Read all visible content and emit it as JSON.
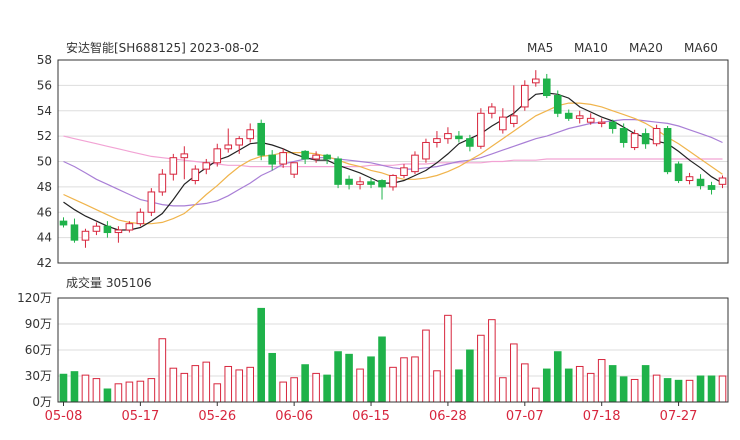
{
  "colors": {
    "up": "#d7263d",
    "down": "#1fb24a",
    "ma5": "#222222",
    "ma10": "#f0b44c",
    "ma20": "#a97fd6",
    "ma60": "#f2a3d4",
    "grid": "#dddddd",
    "axis": "#333333"
  },
  "chart_data": {
    "type": "candlestick",
    "title": "安达智能[SH688125] 2023-08-02",
    "legend": [
      "MA5",
      "MA10",
      "MA20",
      "MA60"
    ],
    "price_axis": {
      "ylim": [
        42,
        58
      ],
      "ticks": [
        "42",
        "44",
        "46",
        "48",
        "50",
        "52",
        "54",
        "56",
        "58"
      ]
    },
    "volume_axis": {
      "title": "成交量 305106",
      "ylim": [
        0,
        120
      ],
      "ticks": [
        "0万",
        "30万",
        "60万",
        "90万",
        "120万"
      ]
    },
    "x_labels": [
      "05-08",
      "05-17",
      "05-26",
      "06-06",
      "06-15",
      "06-28",
      "07-07",
      "07-18",
      "07-27"
    ],
    "x_label_index": [
      0,
      7,
      14,
      21,
      28,
      35,
      42,
      49,
      56
    ],
    "dates": [
      "05-08",
      "05-09",
      "05-10",
      "05-11",
      "05-12",
      "05-15",
      "05-16",
      "05-17",
      "05-18",
      "05-19",
      "05-22",
      "05-23",
      "05-24",
      "05-25",
      "05-26",
      "05-29",
      "05-30",
      "05-31",
      "06-01",
      "06-02",
      "06-05",
      "06-06",
      "06-07",
      "06-08",
      "06-09",
      "06-12",
      "06-13",
      "06-14",
      "06-15",
      "06-16",
      "06-19",
      "06-20",
      "06-21",
      "06-26",
      "06-27",
      "06-28",
      "06-29",
      "06-30",
      "07-03",
      "07-04",
      "07-05",
      "07-06",
      "07-07",
      "07-10",
      "07-11",
      "07-12",
      "07-13",
      "07-14",
      "07-17",
      "07-18",
      "07-19",
      "07-20",
      "07-21",
      "07-24",
      "07-25",
      "07-26",
      "07-27",
      "07-28",
      "07-31",
      "08-01",
      "08-02"
    ],
    "open": [
      45.3,
      45.0,
      43.8,
      44.5,
      44.9,
      44.4,
      44.6,
      45.1,
      46.0,
      47.6,
      49.0,
      50.3,
      48.5,
      49.4,
      49.9,
      51.0,
      51.3,
      51.8,
      53.0,
      50.5,
      49.8,
      49.0,
      50.8,
      50.2,
      50.5,
      50.2,
      48.6,
      48.2,
      48.4,
      48.5,
      48.0,
      48.9,
      49.2,
      50.2,
      51.5,
      51.8,
      52.0,
      51.8,
      51.2,
      53.8,
      52.5,
      53.0,
      54.3,
      56.2,
      56.5,
      55.2,
      53.8,
      53.4,
      53.1,
      53.0,
      53.1,
      52.6,
      51.1,
      52.2,
      51.4,
      52.6,
      49.8,
      48.5,
      48.6,
      48.1,
      48.2
    ],
    "close": [
      45.0,
      43.8,
      44.5,
      44.9,
      44.4,
      44.6,
      45.1,
      46.0,
      47.6,
      49.0,
      50.3,
      50.6,
      49.4,
      49.9,
      51.0,
      51.3,
      51.8,
      52.5,
      50.5,
      49.8,
      50.7,
      49.9,
      50.2,
      50.5,
      50.2,
      48.2,
      48.2,
      48.4,
      48.2,
      48.0,
      48.9,
      49.5,
      50.5,
      51.5,
      51.8,
      52.2,
      51.8,
      51.2,
      53.8,
      54.3,
      53.5,
      53.6,
      56.0,
      56.5,
      55.2,
      53.8,
      53.4,
      53.6,
      53.4,
      53.1,
      52.6,
      51.5,
      52.2,
      51.4,
      52.6,
      49.2,
      48.5,
      48.8,
      48.1,
      47.8,
      48.7
    ],
    "high": [
      45.6,
      45.5,
      44.7,
      45.2,
      45.3,
      44.9,
      45.3,
      46.3,
      47.9,
      49.4,
      50.6,
      51.2,
      49.7,
      50.2,
      51.4,
      52.6,
      52.0,
      53.0,
      53.3,
      50.9,
      51.0,
      49.9,
      50.9,
      50.8,
      50.6,
      50.4,
      48.9,
      48.8,
      48.7,
      48.6,
      49.0,
      49.8,
      50.8,
      51.8,
      52.4,
      52.7,
      52.4,
      52.1,
      54.2,
      54.6,
      54.2,
      56.0,
      56.4,
      57.2,
      56.9,
      55.6,
      54.1,
      54.0,
      53.8,
      53.4,
      53.3,
      53.0,
      52.5,
      52.6,
      52.9,
      52.8,
      50.0,
      49.1,
      49.0,
      48.4,
      48.9
    ],
    "low": [
      44.8,
      43.6,
      43.2,
      44.2,
      44.0,
      43.6,
      44.4,
      44.9,
      45.7,
      47.3,
      48.5,
      48.6,
      48.2,
      49.0,
      49.6,
      50.7,
      50.6,
      51.5,
      50.1,
      49.3,
      49.5,
      48.7,
      49.8,
      49.9,
      49.8,
      47.9,
      47.8,
      47.8,
      47.9,
      47.0,
      47.7,
      48.7,
      49.0,
      49.9,
      51.1,
      51.4,
      51.5,
      50.8,
      51.0,
      53.4,
      52.2,
      52.7,
      54.0,
      55.9,
      55.0,
      53.5,
      53.2,
      53.0,
      52.9,
      52.7,
      52.2,
      51.1,
      50.9,
      51.0,
      51.2,
      49.0,
      48.3,
      48.2,
      47.8,
      47.4,
      47.9
    ],
    "volume": [
      32,
      35,
      31,
      27,
      15,
      21,
      23,
      24,
      27,
      73,
      39,
      33,
      42,
      46,
      21,
      41,
      37,
      40,
      108,
      56,
      23,
      28,
      43,
      33,
      31,
      58,
      55,
      38,
      52,
      75,
      40,
      51,
      52,
      83,
      36,
      100,
      37,
      60,
      77,
      95,
      28,
      67,
      44,
      16,
      38,
      58,
      38,
      41,
      33,
      49,
      42,
      29,
      26,
      42,
      31,
      27,
      25,
      25,
      30,
      30,
      30
    ],
    "ma5": [
      46.8,
      46.2,
      45.7,
      45.3,
      44.9,
      44.6,
      44.6,
      44.8,
      45.3,
      45.9,
      47.0,
      48.2,
      48.9,
      49.5,
      50.1,
      50.4,
      50.9,
      51.4,
      51.5,
      51.3,
      51.0,
      50.6,
      50.3,
      50.1,
      50.1,
      49.7,
      49.4,
      49.1,
      48.7,
      48.3,
      48.3,
      48.5,
      48.9,
      49.3,
      49.9,
      50.6,
      51.4,
      51.8,
      52.2,
      52.8,
      53.3,
      53.8,
      54.6,
      55.3,
      55.4,
      55.3,
      55.0,
      54.3,
      53.9,
      53.5,
      53.2,
      52.7,
      52.2,
      51.9,
      51.6,
      51.4,
      50.8,
      50.1,
      49.5,
      48.8,
      48.3
    ],
    "ma10": [
      47.4,
      47.0,
      46.6,
      46.2,
      45.8,
      45.4,
      45.2,
      45.1,
      45.1,
      45.2,
      45.5,
      45.9,
      46.6,
      47.4,
      48.1,
      48.9,
      49.6,
      50.1,
      50.4,
      50.5,
      50.7,
      50.7,
      50.7,
      50.6,
      50.4,
      50.1,
      49.8,
      49.6,
      49.3,
      49.1,
      48.8,
      48.6,
      48.6,
      48.7,
      48.9,
      49.2,
      49.6,
      50.1,
      50.6,
      51.2,
      51.8,
      52.4,
      53.0,
      53.6,
      54.0,
      54.4,
      54.6,
      54.6,
      54.5,
      54.3,
      54.0,
      53.7,
      53.4,
      53.0,
      52.5,
      51.9,
      51.4,
      50.8,
      50.2,
      49.6,
      49.0
    ],
    "ma20": [
      50.0,
      49.6,
      49.1,
      48.6,
      48.2,
      47.8,
      47.4,
      47.0,
      46.8,
      46.6,
      46.5,
      46.5,
      46.6,
      46.7,
      46.9,
      47.3,
      47.8,
      48.3,
      48.9,
      49.3,
      49.8,
      50.0,
      50.2,
      50.3,
      50.3,
      50.2,
      50.1,
      50.0,
      49.9,
      49.7,
      49.5,
      49.4,
      49.4,
      49.5,
      49.6,
      49.8,
      50.0,
      50.1,
      50.3,
      50.6,
      50.9,
      51.2,
      51.5,
      51.8,
      52.0,
      52.3,
      52.6,
      52.8,
      53.0,
      53.1,
      53.2,
      53.3,
      53.3,
      53.2,
      53.1,
      53.0,
      52.8,
      52.5,
      52.2,
      51.9,
      51.5
    ],
    "ma60": [
      52.0,
      51.8,
      51.6,
      51.4,
      51.2,
      51.0,
      50.8,
      50.6,
      50.4,
      50.3,
      50.2,
      50.1,
      50.0,
      49.9,
      49.8,
      49.7,
      49.7,
      49.6,
      49.6,
      49.6,
      49.6,
      49.6,
      49.6,
      49.6,
      49.6,
      49.6,
      49.6,
      49.6,
      49.7,
      49.7,
      49.7,
      49.8,
      49.8,
      49.8,
      49.9,
      49.9,
      49.9,
      49.9,
      49.9,
      50.0,
      50.0,
      50.1,
      50.1,
      50.1,
      50.2,
      50.2,
      50.2,
      50.2,
      50.2,
      50.2,
      50.2,
      50.2,
      50.2,
      50.2,
      50.2,
      50.2,
      50.2,
      50.2,
      50.2,
      50.2,
      50.2
    ]
  }
}
